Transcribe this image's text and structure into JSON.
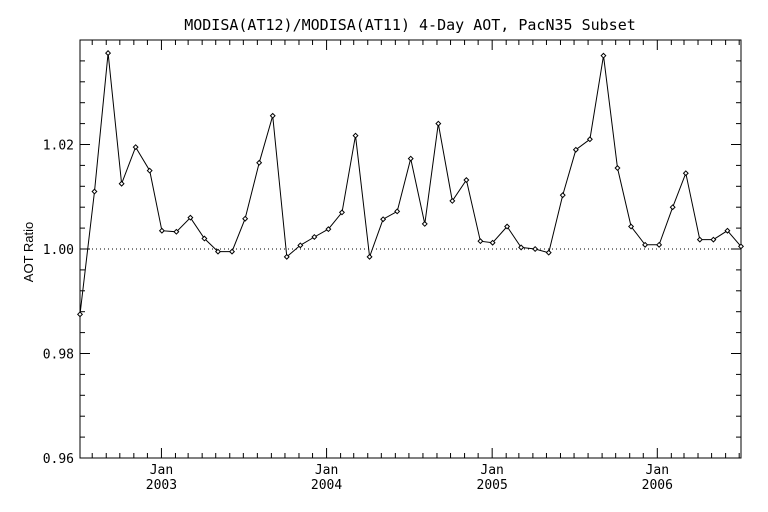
{
  "chart_data": {
    "type": "line",
    "title": "MODISA(AT12)/MODISA(AT11) 4-Day AOT, PacN35 Subset",
    "xlabel": "",
    "ylabel": "AOT Ratio",
    "ylim": [
      0.96,
      1.04
    ],
    "y_ticks": [
      "0.96",
      "0.98",
      "1.00",
      "1.02"
    ],
    "x_ticks": [
      {
        "month": "Jan",
        "year": "2003"
      },
      {
        "month": "Jan",
        "year": "2004"
      },
      {
        "month": "Jan",
        "year": "2005"
      },
      {
        "month": "Jan",
        "year": "2006"
      }
    ],
    "xlim": [
      "2002-07-05",
      "2006-07-05"
    ],
    "reference_line": 1.0,
    "grid": false,
    "series": [
      {
        "x": [
          "2002-07-05",
          "2002-08-06",
          "2002-09-05",
          "2002-10-05",
          "2002-11-05",
          "2002-12-06",
          "2003-01-02",
          "2003-02-03",
          "2003-03-06",
          "2003-04-06",
          "2003-05-06",
          "2003-06-06",
          "2003-07-05",
          "2003-08-05",
          "2003-09-04",
          "2003-10-05",
          "2003-11-04",
          "2003-12-05",
          "2004-01-05",
          "2004-02-04",
          "2004-03-05",
          "2004-04-05",
          "2004-05-05",
          "2004-06-05",
          "2004-07-05",
          "2004-08-05",
          "2004-09-04",
          "2004-10-05",
          "2004-11-05",
          "2004-12-06",
          "2005-01-02",
          "2005-02-03",
          "2005-03-06",
          "2005-04-06",
          "2005-05-06",
          "2005-06-06",
          "2005-07-05",
          "2005-08-05",
          "2005-09-04",
          "2005-10-05",
          "2005-11-04",
          "2005-12-05",
          "2006-01-05",
          "2006-02-04",
          "2006-03-05",
          "2006-04-05",
          "2006-05-05",
          "2006-06-05",
          "2006-07-05"
        ],
        "y": [
          0.9875,
          1.011,
          1.0375,
          1.0125,
          1.0195,
          1.015,
          1.0035,
          1.0033,
          1.006,
          1.002,
          0.9995,
          0.9995,
          1.0058,
          1.0165,
          1.0255,
          0.9985,
          1.0007,
          1.0023,
          1.0038,
          1.007,
          1.0217,
          0.9985,
          1.0057,
          1.0072,
          1.0173,
          1.0048,
          1.024,
          1.0092,
          1.0132,
          1.0015,
          1.0012,
          1.0043,
          1.0003,
          1.0,
          0.9993,
          1.0103,
          1.019,
          1.021,
          1.037,
          1.0155,
          1.0043,
          1.0008,
          1.0008,
          1.008,
          1.0145,
          1.0018,
          1.0018,
          1.0035,
          1.0005
        ]
      }
    ]
  }
}
